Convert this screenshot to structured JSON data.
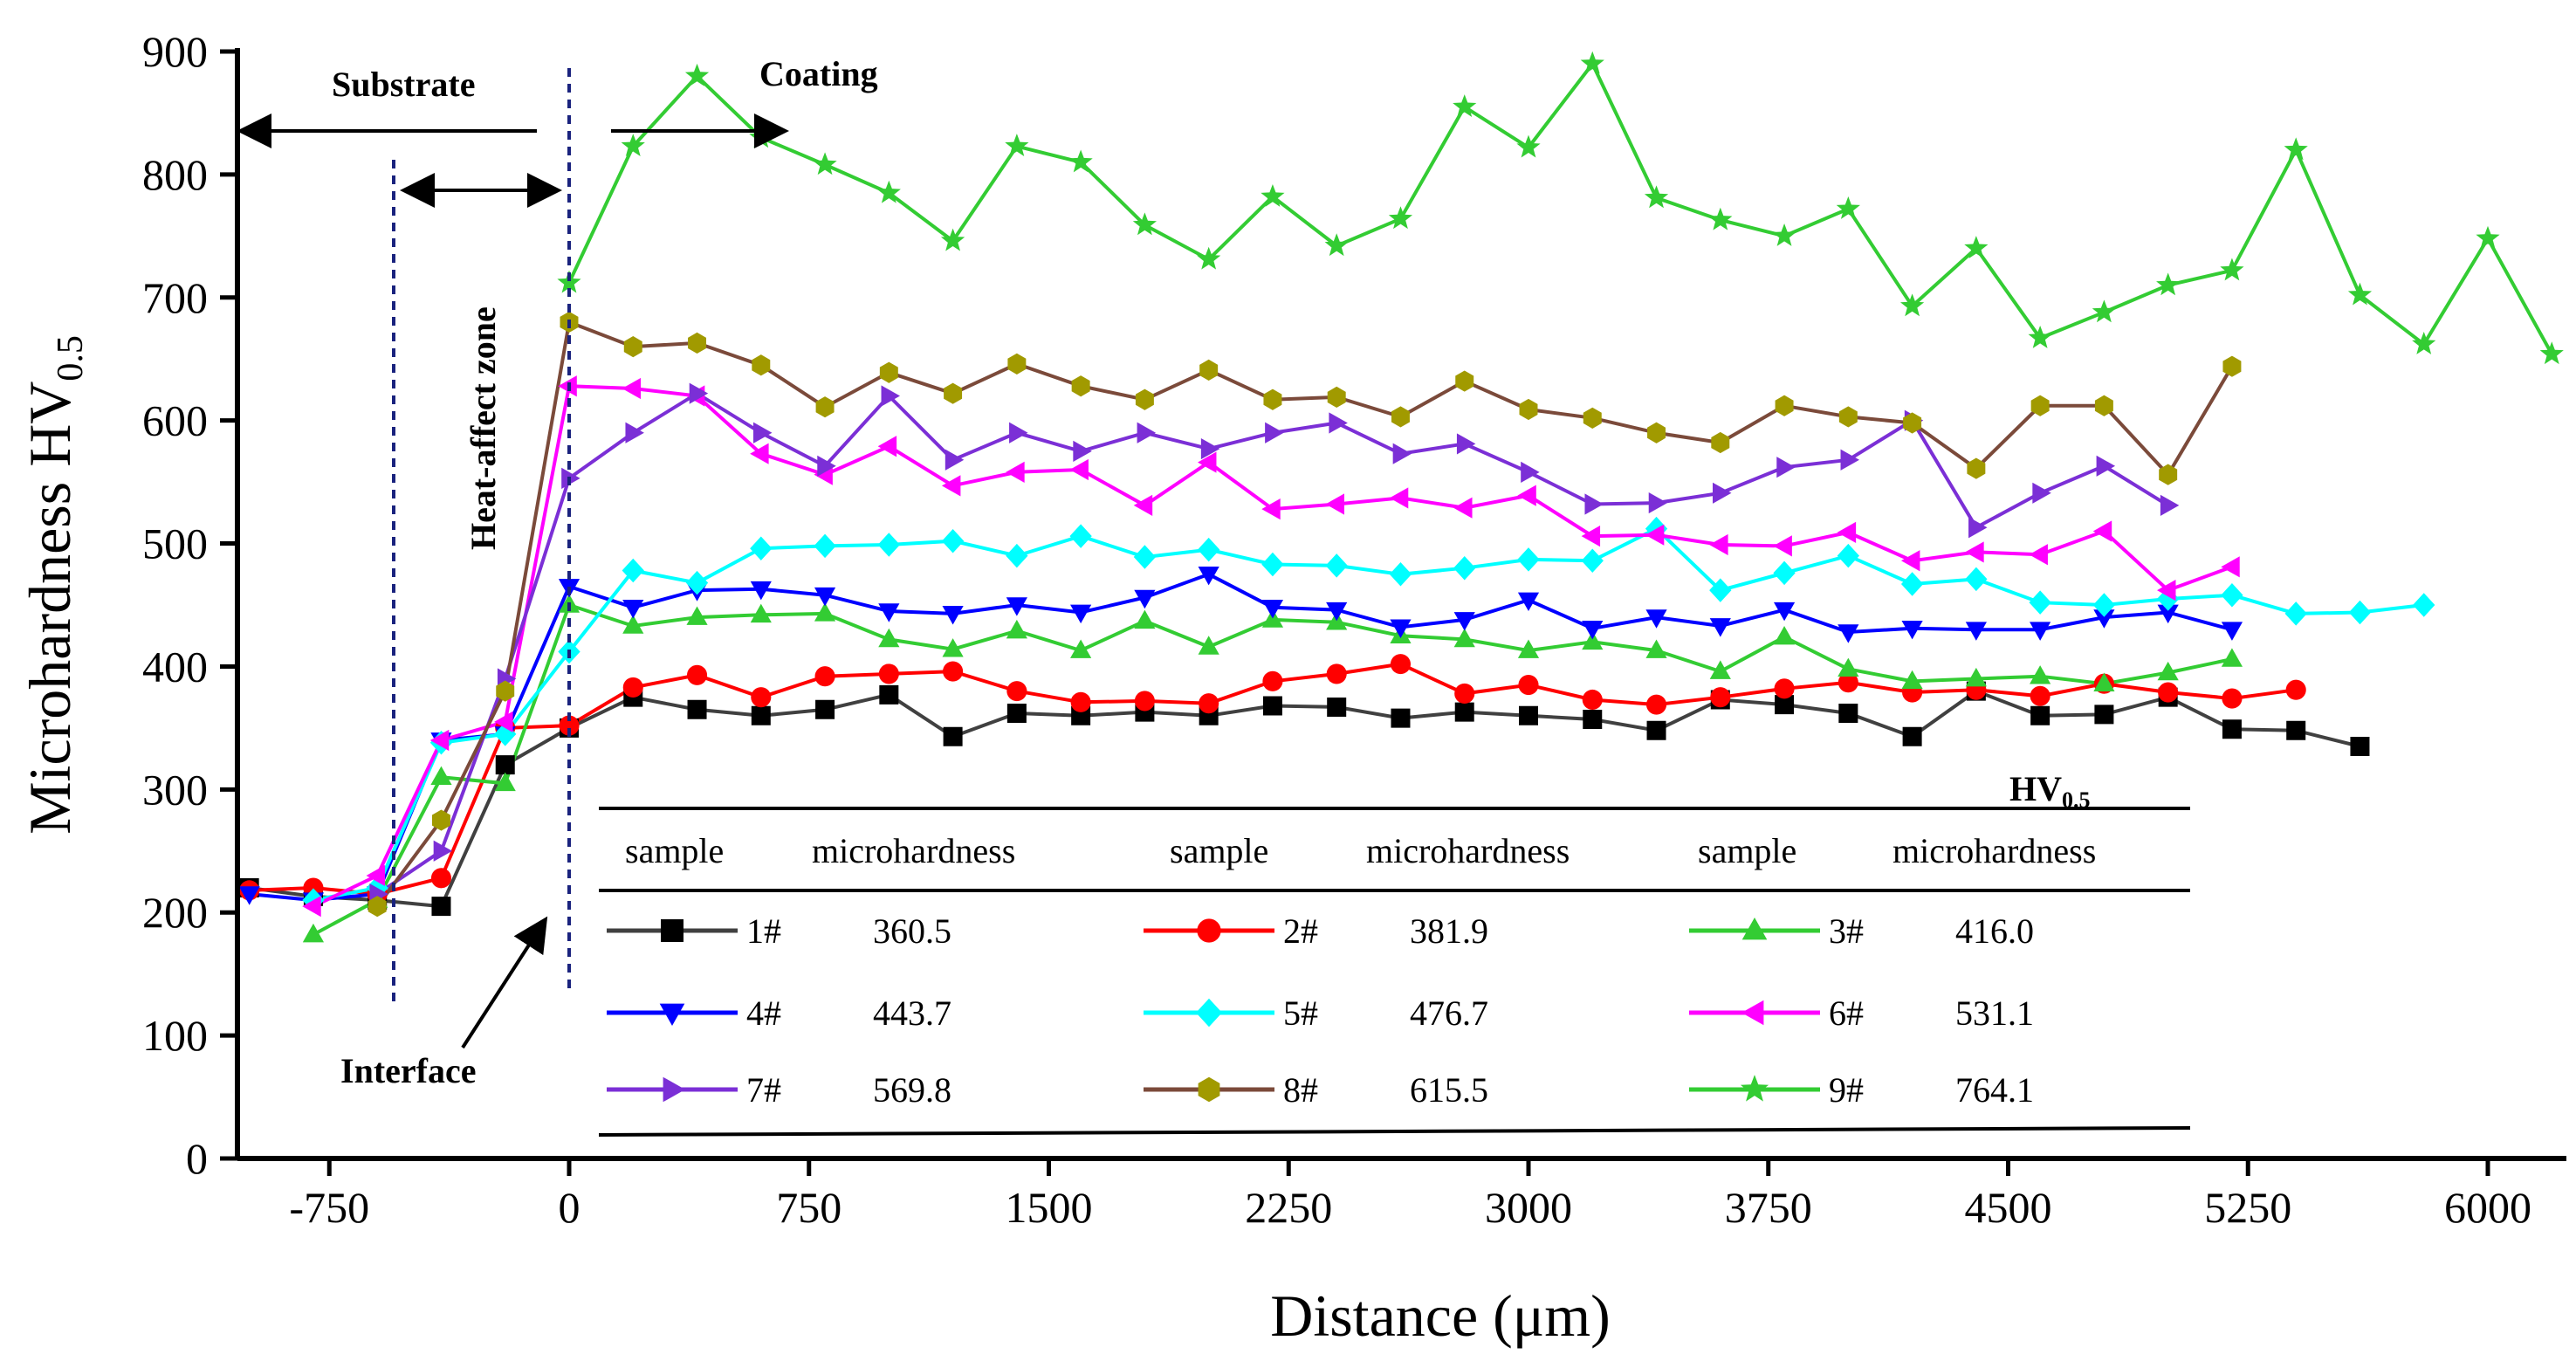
{
  "chart_data": {
    "type": "line",
    "title": "",
    "xlabel": "Distance (μm)",
    "ylabel_main": "Microhardness  HV",
    "ylabel_sub": "0.5",
    "xlim": [
      -1050,
      6250
    ],
    "ylim": [
      0,
      900
    ],
    "xticks": [
      -750,
      0,
      750,
      1500,
      2250,
      3000,
      3750,
      4500,
      5250,
      6000
    ],
    "xtick_labels": [
      "-750",
      "0",
      "750",
      "1500",
      "2250",
      "3000",
      "3750",
      "4500",
      "5250",
      "6000"
    ],
    "yticks": [
      0,
      100,
      200,
      300,
      400,
      500,
      600,
      700,
      800,
      900
    ],
    "ytick_labels": [
      "0",
      "100",
      "200",
      "300",
      "400",
      "500",
      "600",
      "700",
      "800",
      "900"
    ],
    "series": [
      {
        "name": "1#",
        "mean": "360.5",
        "color": "#000000",
        "line_color": "#404040",
        "marker": "square",
        "x": [
          -1000,
          -800,
          -600,
          -400,
          -200,
          0,
          200,
          400,
          600,
          800,
          1000,
          1200,
          1400,
          1600,
          1800,
          2000,
          2200,
          2400,
          2600,
          2800,
          3000,
          3200,
          3400,
          3600,
          3800,
          4000,
          4200,
          4400,
          4600,
          4800,
          5000,
          5200,
          5400,
          5600
        ],
        "y": [
          220,
          213,
          210,
          205,
          320,
          350,
          375,
          365,
          360,
          365,
          377,
          343,
          362,
          360,
          363,
          360,
          368,
          367,
          358,
          363,
          360,
          357,
          348,
          373,
          369,
          362,
          343,
          380,
          360,
          361,
          375,
          349,
          348,
          335
        ]
      },
      {
        "name": "2#",
        "mean": "381.9",
        "color": "#ff0000",
        "line_color": "#ff0000",
        "marker": "circle",
        "x": [
          -1000,
          -800,
          -600,
          -400,
          -200,
          0,
          200,
          400,
          600,
          800,
          1000,
          1200,
          1400,
          1600,
          1800,
          2000,
          2200,
          2400,
          2600,
          2800,
          3000,
          3200,
          3400,
          3600,
          3800,
          4000,
          4200,
          4400,
          4600,
          4800,
          5000,
          5200,
          5400
        ],
        "y": [
          218,
          220,
          215,
          228,
          350,
          352,
          383,
          393,
          375,
          392,
          394,
          396,
          380,
          371,
          372,
          370,
          388,
          394,
          402,
          378,
          385,
          373,
          369,
          375,
          382,
          387,
          379,
          381,
          376,
          386,
          379,
          374,
          381
        ]
      },
      {
        "name": "3#",
        "mean": "416.0",
        "color": "#33cc33",
        "line_color": "#33cc33",
        "marker": "triangle-up",
        "x": [
          -800,
          -600,
          -400,
          -200,
          0,
          200,
          400,
          600,
          800,
          1000,
          1200,
          1400,
          1600,
          1800,
          2000,
          2200,
          2400,
          2600,
          2800,
          3000,
          3200,
          3400,
          3600,
          3800,
          4000,
          4200,
          4400,
          4600,
          4800,
          5000,
          5200
        ],
        "y": [
          182,
          210,
          310,
          305,
          450,
          433,
          440,
          442,
          443,
          422,
          414,
          429,
          413,
          437,
          416,
          438,
          436,
          425,
          422,
          413,
          420,
          413,
          396,
          424,
          398,
          388,
          390,
          392,
          386,
          395,
          406
        ]
      },
      {
        "name": "4#",
        "mean": "443.7",
        "color": "#0000ff",
        "line_color": "#0000ff",
        "marker": "triangle-down",
        "x": [
          -1000,
          -800,
          -600,
          -400,
          -200,
          0,
          200,
          400,
          600,
          800,
          1000,
          1200,
          1400,
          1600,
          1800,
          2000,
          2200,
          2400,
          2600,
          2800,
          3000,
          3200,
          3400,
          3600,
          3800,
          4000,
          4200,
          4400,
          4600,
          4800,
          5000,
          5200
        ],
        "y": [
          215,
          210,
          215,
          340,
          345,
          465,
          448,
          462,
          463,
          458,
          445,
          443,
          450,
          444,
          456,
          475,
          448,
          446,
          432,
          438,
          454,
          431,
          440,
          433,
          446,
          428,
          431,
          430,
          430,
          440,
          444,
          430
        ]
      },
      {
        "name": "5#",
        "mean": "476.7",
        "color": "#00ffff",
        "line_color": "#00ffff",
        "marker": "diamond",
        "x": [
          -800,
          -600,
          -400,
          -200,
          0,
          200,
          400,
          600,
          800,
          1000,
          1200,
          1400,
          1600,
          1800,
          2000,
          2200,
          2400,
          2600,
          2800,
          3000,
          3200,
          3400,
          3600,
          3800,
          4000,
          4200,
          4400,
          4600,
          4800,
          5000,
          5200,
          5400,
          5600,
          5800
        ],
        "y": [
          210,
          220,
          338,
          345,
          412,
          478,
          468,
          496,
          498,
          499,
          502,
          490,
          506,
          489,
          495,
          483,
          482,
          475,
          480,
          487,
          486,
          512,
          462,
          476,
          490,
          467,
          471,
          452,
          450,
          455,
          458,
          443,
          444,
          450
        ]
      },
      {
        "name": "6#",
        "mean": "531.1",
        "color": "#ff00ff",
        "line_color": "#ff00ff",
        "marker": "triangle-left",
        "x": [
          -800,
          -600,
          -400,
          -200,
          0,
          200,
          400,
          600,
          800,
          1000,
          1200,
          1400,
          1600,
          1800,
          2000,
          2200,
          2400,
          2600,
          2800,
          3000,
          3200,
          3400,
          3600,
          3800,
          4000,
          4200,
          4400,
          4600,
          4800,
          5000,
          5200
        ],
        "y": [
          205,
          230,
          340,
          355,
          628,
          626,
          620,
          573,
          556,
          579,
          547,
          558,
          560,
          531,
          566,
          528,
          532,
          537,
          529,
          539,
          506,
          507,
          499,
          498,
          509,
          486,
          493,
          491,
          510,
          462,
          481
        ]
      },
      {
        "name": "7#",
        "mean": "569.8",
        "color": "#7b2fd6",
        "line_color": "#7b2fd6",
        "marker": "triangle-right",
        "x": [
          -600,
          -400,
          -200,
          0,
          200,
          400,
          600,
          800,
          1000,
          1200,
          1400,
          1600,
          1800,
          2000,
          2200,
          2400,
          2600,
          2800,
          3000,
          3200,
          3400,
          3600,
          3800,
          4000,
          4200,
          4400,
          4600,
          4800,
          5000
        ],
        "y": [
          215,
          250,
          390,
          553,
          590,
          622,
          590,
          563,
          620,
          568,
          590,
          575,
          590,
          577,
          590,
          598,
          573,
          581,
          558,
          532,
          533,
          541,
          562,
          568,
          600,
          513,
          541,
          563,
          531
        ]
      },
      {
        "name": "8#",
        "mean": "615.5",
        "color": "#a19a00",
        "line_color": "#7b4a3a",
        "marker": "hexagon",
        "x": [
          -600,
          -400,
          -200,
          0,
          200,
          400,
          600,
          800,
          1000,
          1200,
          1400,
          1600,
          1800,
          2000,
          2200,
          2400,
          2600,
          2800,
          3000,
          3200,
          3400,
          3600,
          3800,
          4000,
          4200,
          4400,
          4600,
          4800,
          5000,
          5200
        ],
        "y": [
          205,
          275,
          380,
          680,
          660,
          663,
          645,
          611,
          639,
          622,
          646,
          628,
          617,
          641,
          617,
          619,
          603,
          632,
          609,
          602,
          590,
          582,
          612,
          603,
          598,
          561,
          612,
          612,
          556,
          644
        ]
      },
      {
        "name": "9#",
        "mean": "764.1",
        "color": "#33cc33",
        "line_color": "#33cc33",
        "marker": "star",
        "x": [
          0,
          200,
          400,
          600,
          800,
          1000,
          1200,
          1400,
          1600,
          1800,
          2000,
          2200,
          2400,
          2600,
          2800,
          3000,
          3200,
          3400,
          3600,
          3800,
          4000,
          4200,
          4400,
          4600,
          4800,
          5000,
          5200,
          5400,
          5600,
          5800,
          6000,
          6200
        ],
        "y": [
          712,
          823,
          880,
          830,
          808,
          785,
          746,
          823,
          810,
          759,
          731,
          782,
          742,
          764,
          855,
          822,
          890,
          781,
          763,
          750,
          772,
          693,
          740,
          667,
          688,
          710,
          722,
          820,
          702,
          662,
          748,
          654
        ]
      }
    ],
    "annotations": {
      "substrate": "Substrate",
      "coating": "Coating",
      "heat_affect_zone": "Heat-affect zone",
      "interface": "Interface"
    },
    "legend_table": {
      "unit_main": "HV",
      "unit_sub": "0.5",
      "col_sample": "sample",
      "col_microhardness": "microhardness"
    }
  }
}
